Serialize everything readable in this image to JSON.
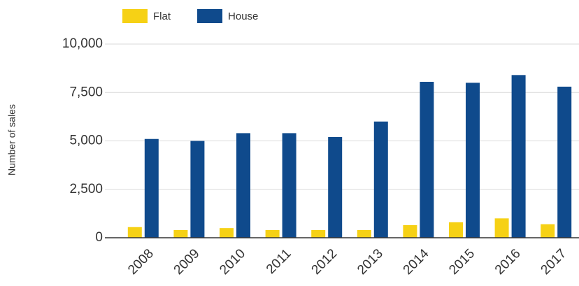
{
  "chart_data": {
    "type": "bar",
    "y_label": "Number of sales",
    "categories": [
      "2008",
      "2009",
      "2010",
      "2011",
      "2012",
      "2013",
      "2014",
      "2015",
      "2016",
      "2017"
    ],
    "series": [
      {
        "name": "Flat",
        "color": "#f6d115",
        "values": [
          550,
          400,
          500,
          400,
          400,
          400,
          650,
          800,
          1000,
          700
        ]
      },
      {
        "name": "House",
        "color": "#0f4a8c",
        "values": [
          5100,
          5000,
          5400,
          5400,
          5200,
          6000,
          8050,
          8000,
          8400,
          7800
        ]
      }
    ],
    "ylim": [
      0,
      10000
    ],
    "yticks": [
      0,
      {
        "value": 2500,
        "label": "2,500"
      },
      {
        "value": 5000,
        "label": "5,000"
      },
      {
        "value": 7500,
        "label": "7,500"
      },
      {
        "value": 10000,
        "label": "10,000"
      }
    ],
    "grid": true
  }
}
